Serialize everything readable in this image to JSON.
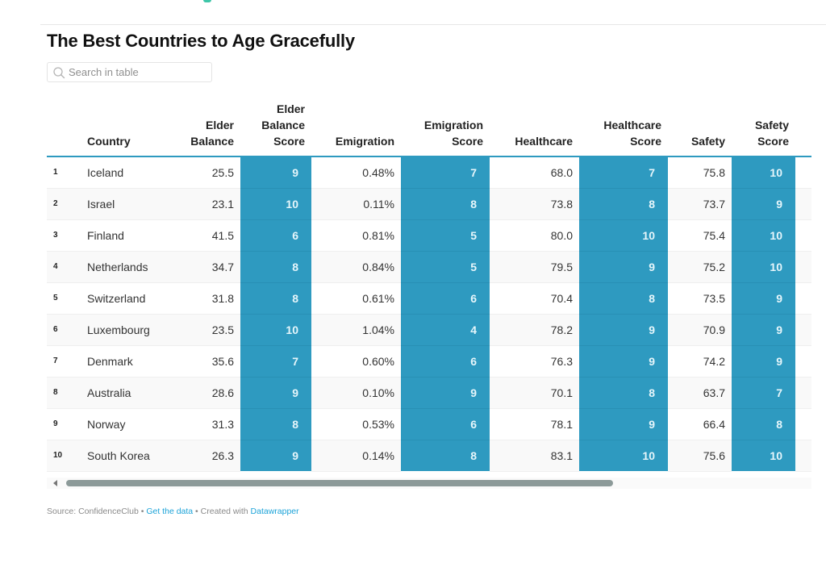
{
  "title": "The Best Countries to Age Gracefully",
  "search": {
    "placeholder": "Search in table",
    "value": ""
  },
  "table": {
    "columns": [
      {
        "key": "rank",
        "label": ""
      },
      {
        "key": "country",
        "label": "Country"
      },
      {
        "key": "elder_balance",
        "label": "Elder Balance"
      },
      {
        "key": "elder_balance_score",
        "label": "Elder Balance Score"
      },
      {
        "key": "emigration",
        "label": "Emigration"
      },
      {
        "key": "emigration_score",
        "label": "Emigration Score"
      },
      {
        "key": "healthcare",
        "label": "Healthcare"
      },
      {
        "key": "healthcare_score",
        "label": "Healthcare Score"
      },
      {
        "key": "safety",
        "label": "Safety"
      },
      {
        "key": "safety_score",
        "label": "Safety Score"
      }
    ],
    "header_lines": {
      "country": [
        "Country"
      ],
      "elder_balance": [
        "Elder",
        "Balance"
      ],
      "elder_balance_score": [
        "Elder",
        "Balance",
        "Score"
      ],
      "emigration": [
        "Emigration"
      ],
      "emigration_score": [
        "Emigration",
        "Score"
      ],
      "healthcare": [
        "Healthcare"
      ],
      "healthcare_score": [
        "Healthcare",
        "Score"
      ],
      "safety": [
        "Safety"
      ],
      "safety_score": [
        "Safety",
        "Score"
      ]
    },
    "score_color": "#2e9ac0",
    "rows": [
      {
        "rank": "1",
        "country": "Iceland",
        "elder_balance": "25.5",
        "elder_balance_score": "9",
        "emigration": "0.48%",
        "emigration_score": "7",
        "healthcare": "68.0",
        "healthcare_score": "7",
        "safety": "75.8",
        "safety_score": "10"
      },
      {
        "rank": "2",
        "country": "Israel",
        "elder_balance": "23.1",
        "elder_balance_score": "10",
        "emigration": "0.11%",
        "emigration_score": "8",
        "healthcare": "73.8",
        "healthcare_score": "8",
        "safety": "73.7",
        "safety_score": "9"
      },
      {
        "rank": "3",
        "country": "Finland",
        "elder_balance": "41.5",
        "elder_balance_score": "6",
        "emigration": "0.81%",
        "emigration_score": "5",
        "healthcare": "80.0",
        "healthcare_score": "10",
        "safety": "75.4",
        "safety_score": "10"
      },
      {
        "rank": "4",
        "country": "Netherlands",
        "elder_balance": "34.7",
        "elder_balance_score": "8",
        "emigration": "0.84%",
        "emigration_score": "5",
        "healthcare": "79.5",
        "healthcare_score": "9",
        "safety": "75.2",
        "safety_score": "10"
      },
      {
        "rank": "5",
        "country": "Switzerland",
        "elder_balance": "31.8",
        "elder_balance_score": "8",
        "emigration": "0.61%",
        "emigration_score": "6",
        "healthcare": "70.4",
        "healthcare_score": "8",
        "safety": "73.5",
        "safety_score": "9"
      },
      {
        "rank": "6",
        "country": "Luxembourg",
        "elder_balance": "23.5",
        "elder_balance_score": "10",
        "emigration": "1.04%",
        "emigration_score": "4",
        "healthcare": "78.2",
        "healthcare_score": "9",
        "safety": "70.9",
        "safety_score": "9"
      },
      {
        "rank": "7",
        "country": "Denmark",
        "elder_balance": "35.6",
        "elder_balance_score": "7",
        "emigration": "0.60%",
        "emigration_score": "6",
        "healthcare": "76.3",
        "healthcare_score": "9",
        "safety": "74.2",
        "safety_score": "9"
      },
      {
        "rank": "8",
        "country": "Australia",
        "elder_balance": "28.6",
        "elder_balance_score": "9",
        "emigration": "0.10%",
        "emigration_score": "9",
        "healthcare": "70.1",
        "healthcare_score": "8",
        "safety": "63.7",
        "safety_score": "7"
      },
      {
        "rank": "9",
        "country": "Norway",
        "elder_balance": "31.3",
        "elder_balance_score": "8",
        "emigration": "0.53%",
        "emigration_score": "6",
        "healthcare": "78.1",
        "healthcare_score": "9",
        "safety": "66.4",
        "safety_score": "8"
      },
      {
        "rank": "10",
        "country": "South Korea",
        "elder_balance": "26.3",
        "elder_balance_score": "9",
        "emigration": "0.14%",
        "emigration_score": "8",
        "healthcare": "83.1",
        "healthcare_score": "10",
        "safety": "75.6",
        "safety_score": "10"
      }
    ]
  },
  "footer": {
    "source_label": "Source: ConfidenceClub",
    "separator": " • ",
    "get_data_link": "Get the data",
    "created_with": "Created with",
    "datawrapper_link": "Datawrapper"
  },
  "icons": {
    "search": "search-icon",
    "scroll_left": "chevron-left-icon"
  }
}
